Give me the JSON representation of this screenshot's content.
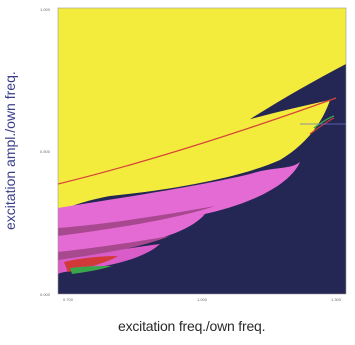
{
  "chart_data": {
    "type": "heatmap",
    "title": "",
    "xlabel": "excitation freq./own freq.",
    "ylabel": "excitation ampl./own freq.",
    "xlim": [
      0.7,
      1.3
    ],
    "ylim": [
      0.0,
      1.0
    ],
    "x_ticks": [
      "0.700",
      "1.000",
      "1.300"
    ],
    "y_ticks": [
      "0.000",
      "0.500",
      "1.000"
    ],
    "regions": [
      {
        "name": "background",
        "color": "#242653"
      },
      {
        "name": "upper",
        "color": "#f4ec3c"
      },
      {
        "name": "tongues",
        "color": "#e46ad4"
      },
      {
        "name": "inner",
        "color": "#c94a92"
      },
      {
        "name": "edge",
        "color": "#d23a3a"
      },
      {
        "name": "edge-green",
        "color": "#3aa64a"
      }
    ],
    "grid": false,
    "legend": "none"
  }
}
